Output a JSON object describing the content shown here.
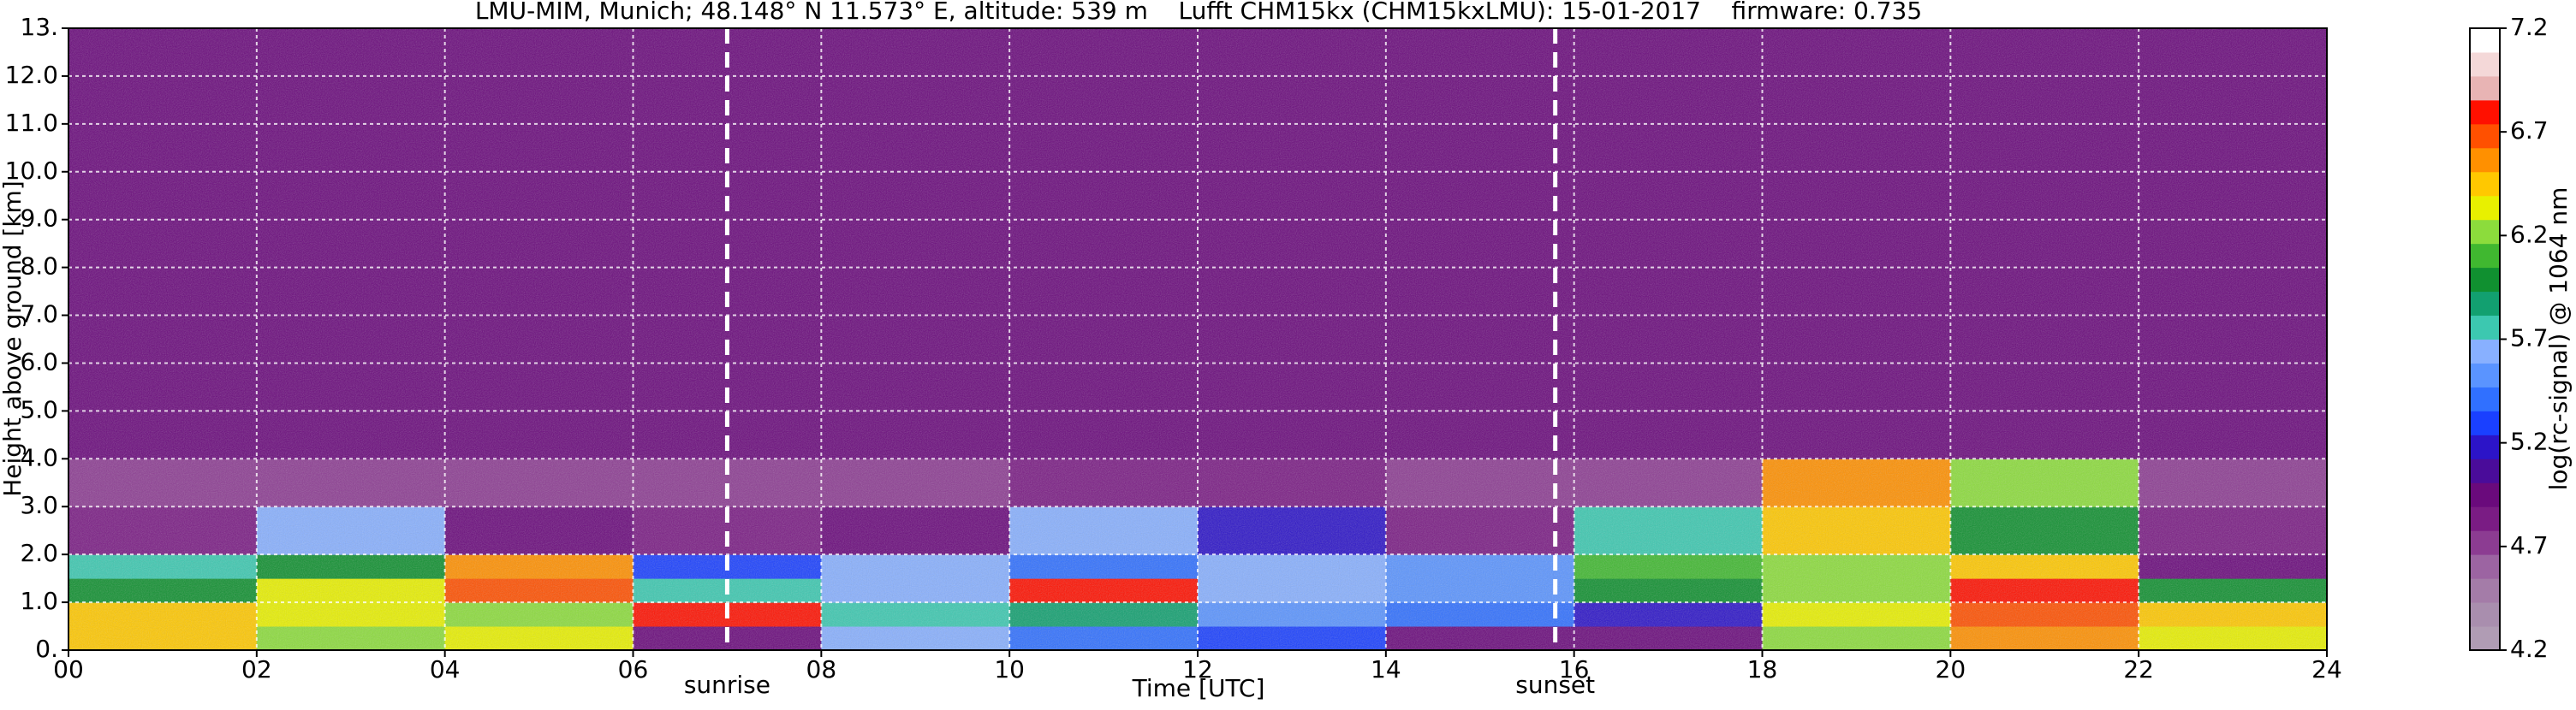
{
  "chart_data": {
    "type": "heatmap",
    "title": "LMU-MIM, Munich; 48.148° N 11.573° E, altitude: 539 m    Lufft CHM15kx (CHM15kxLMU): 15-01-2017    firmware: 0.735",
    "xlabel": "Time [UTC]",
    "ylabel": "Height above ground [km]",
    "colorbar_label": "log(rc-signal) @ 1064 nm",
    "xlim": [
      0,
      24
    ],
    "ylim": [
      0,
      13
    ],
    "xticks": [
      {
        "value": 0,
        "label": "00"
      },
      {
        "value": 2,
        "label": "02"
      },
      {
        "value": 4,
        "label": "04"
      },
      {
        "value": 6,
        "label": "06"
      },
      {
        "value": 8,
        "label": "08"
      },
      {
        "value": 10,
        "label": "10"
      },
      {
        "value": 12,
        "label": "12"
      },
      {
        "value": 14,
        "label": "14"
      },
      {
        "value": 16,
        "label": "16"
      },
      {
        "value": 18,
        "label": "18"
      },
      {
        "value": 20,
        "label": "20"
      },
      {
        "value": 22,
        "label": "22"
      },
      {
        "value": 24,
        "label": "24"
      }
    ],
    "yticks": [
      {
        "value": 0,
        "label": "0."
      },
      {
        "value": 1,
        "label": "1.0"
      },
      {
        "value": 2,
        "label": "2.0"
      },
      {
        "value": 3,
        "label": "3.0"
      },
      {
        "value": 4,
        "label": "4.0"
      },
      {
        "value": 5,
        "label": "5.0"
      },
      {
        "value": 6,
        "label": "6.0"
      },
      {
        "value": 7,
        "label": "7.0"
      },
      {
        "value": 8,
        "label": "8.0"
      },
      {
        "value": 9,
        "label": "9.0"
      },
      {
        "value": 10,
        "label": "10.0"
      },
      {
        "value": 11,
        "label": "11.0"
      },
      {
        "value": 12,
        "label": "12.0"
      },
      {
        "value": 13,
        "label": "13."
      }
    ],
    "grid": true,
    "clim": [
      4.2,
      7.2
    ],
    "cticks": [
      4.2,
      4.7,
      5.2,
      5.7,
      6.2,
      6.7,
      7.2
    ],
    "colormap": [
      "#b09cb4",
      "#a98eae",
      "#a47ca8",
      "#9c64a2",
      "#8c3c92",
      "#7a1c84",
      "#6a0a7c",
      "#4a0c9a",
      "#2c14c8",
      "#1a40ff",
      "#3070ff",
      "#5a94ff",
      "#88b0ff",
      "#3cc8b0",
      "#12a070",
      "#109030",
      "#40b830",
      "#8cdc3c",
      "#e8f000",
      "#ffc800",
      "#ff9000",
      "#ff5000",
      "#ff1000",
      "#e8b4b4",
      "#f4d8d8",
      "#ffffff"
    ],
    "xedges": [
      0,
      2,
      4,
      6,
      8,
      10,
      12,
      14,
      16,
      18,
      20,
      22,
      24
    ],
    "yedges": [
      0,
      0.5,
      1,
      1.5,
      2,
      3,
      4,
      13
    ],
    "z": [
      [
        6.5,
        6.2,
        6.3,
        5.0,
        5.6,
        5.4,
        5.3,
        5.0,
        5.0,
        6.2,
        6.6,
        6.3
      ],
      [
        6.4,
        6.3,
        6.2,
        6.8,
        5.8,
        5.9,
        5.5,
        5.4,
        5.2,
        6.3,
        6.7,
        6.4
      ],
      [
        6.0,
        6.3,
        6.7,
        5.8,
        5.6,
        6.8,
        5.6,
        5.5,
        6.0,
        6.2,
        6.8,
        6.0
      ],
      [
        5.8,
        6.0,
        6.6,
        5.3,
        5.6,
        5.4,
        5.6,
        5.5,
        6.1,
        6.2,
        6.4,
        5.0
      ],
      [
        4.8,
        5.6,
        5.0,
        4.8,
        4.9,
        5.6,
        5.2,
        4.8,
        5.8,
        6.4,
        6.0,
        4.8
      ],
      [
        4.7,
        4.7,
        4.7,
        4.7,
        4.7,
        4.8,
        4.8,
        4.7,
        4.7,
        6.6,
        6.2,
        4.7
      ],
      [
        4.9,
        4.9,
        4.9,
        4.9,
        4.9,
        4.9,
        4.9,
        4.9,
        4.9,
        4.9,
        4.9,
        4.9
      ]
    ],
    "annotations": [
      {
        "label": "sunrise",
        "x": 7.0
      },
      {
        "label": "sunset",
        "x": 15.8
      }
    ]
  }
}
